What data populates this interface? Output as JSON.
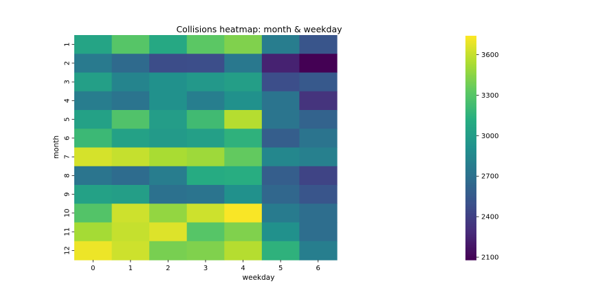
{
  "chart_data": {
    "type": "heatmap",
    "title": "Collisions heatmap: month & weekday",
    "xlabel": "weekday",
    "ylabel": "month",
    "x_categories": [
      "0",
      "1",
      "2",
      "3",
      "4",
      "5",
      "6"
    ],
    "y_categories": [
      "1",
      "2",
      "3",
      "4",
      "5",
      "6",
      "7",
      "8",
      "9",
      "10",
      "11",
      "12"
    ],
    "values": [
      [
        3050,
        3300,
        3080,
        3320,
        3420,
        2780,
        2520
      ],
      [
        2760,
        2660,
        2470,
        2480,
        2750,
        2240,
        2080
      ],
      [
        3020,
        2830,
        2920,
        2970,
        3010,
        2480,
        2550
      ],
      [
        2780,
        2720,
        2920,
        2790,
        2920,
        2720,
        2330
      ],
      [
        3030,
        3280,
        3000,
        3220,
        3560,
        2730,
        2610
      ],
      [
        3200,
        3030,
        2980,
        3020,
        3150,
        2580,
        2720
      ],
      [
        3640,
        3600,
        3530,
        3500,
        3340,
        2850,
        2800
      ],
      [
        2730,
        2670,
        2780,
        3100,
        3120,
        2580,
        2420
      ],
      [
        3030,
        3010,
        2700,
        2720,
        2920,
        2640,
        2520
      ],
      [
        3290,
        3620,
        3470,
        3620,
        3730,
        2770,
        2680
      ],
      [
        3520,
        3600,
        3660,
        3300,
        3420,
        2920,
        2680
      ],
      [
        3700,
        3620,
        3400,
        3420,
        3560,
        3150,
        2790
      ]
    ],
    "colorbar": {
      "colormap": "viridis",
      "vmin": 2080,
      "vmax": 3740,
      "ticks": [
        2100,
        2400,
        2700,
        3000,
        3300,
        3600
      ]
    },
    "grid": false
  }
}
